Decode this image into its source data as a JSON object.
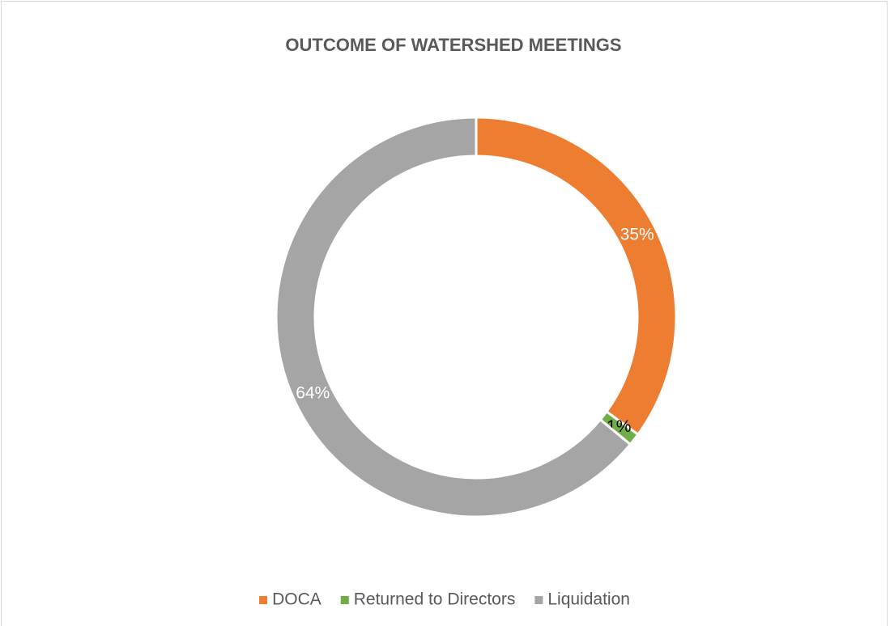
{
  "chart_data": {
    "type": "donut",
    "title": "OUTCOME OF WATERSHED MEETINGS",
    "categories": [
      "DOCA",
      "Returned to Directors",
      "Liquidation"
    ],
    "values": [
      35,
      1,
      64
    ],
    "value_labels": [
      "35%",
      "1%",
      "64%"
    ],
    "colors": [
      "#ed7d31",
      "#70ad47",
      "#a5a5a5"
    ],
    "label_colors": [
      "#ffffff",
      "#000000",
      "#ffffff"
    ],
    "legend": "bottom"
  }
}
